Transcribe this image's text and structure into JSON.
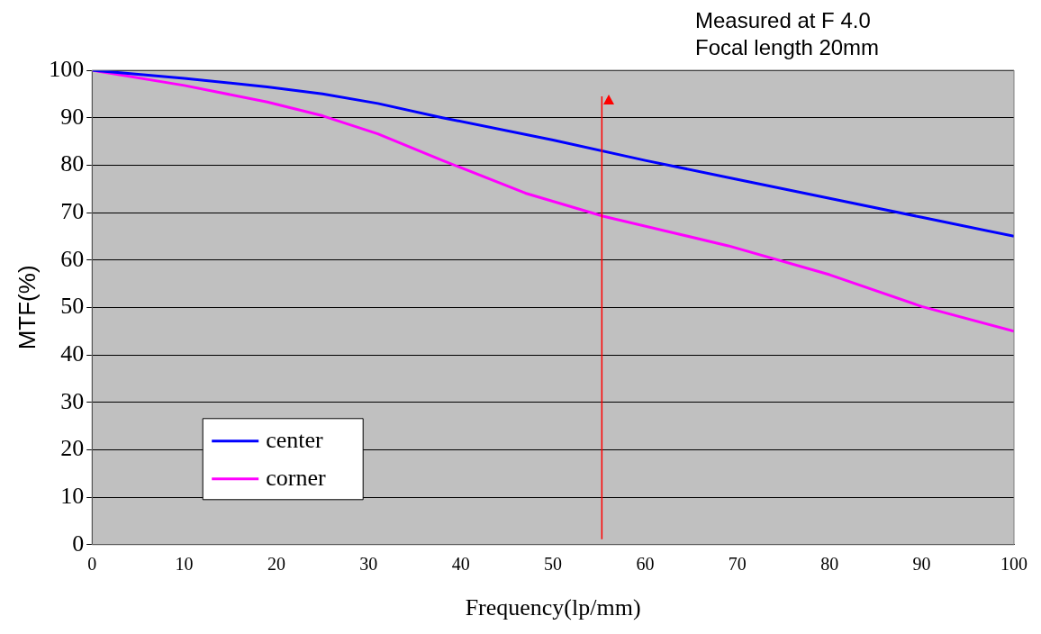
{
  "chart_data": {
    "type": "line",
    "xlabel": "Frequency(lp/mm)",
    "ylabel": "MTF(%)",
    "annotations": [
      "Measured at F 4.0",
      "Focal length 20mm"
    ],
    "series": [
      {
        "name": "center",
        "color": "#0000ff",
        "x": [
          0,
          10,
          19,
          25,
          31,
          38,
          50,
          60,
          70,
          80,
          90,
          100
        ],
        "values": [
          100,
          98.3,
          96.5,
          95,
          93,
          90,
          85.3,
          81,
          77,
          73,
          69,
          65
        ]
      },
      {
        "name": "corner",
        "color": "#ff00ff",
        "x": [
          0,
          10,
          19,
          25,
          31,
          38,
          47,
          55.5,
          69,
          80,
          90,
          100
        ],
        "values": [
          100,
          96.8,
          93.3,
          90.4,
          86.6,
          81,
          74.1,
          69.2,
          63,
          56.9,
          50.2,
          45
        ]
      }
    ],
    "xlim": [
      0,
      100
    ],
    "xticks": [
      0,
      10,
      20,
      30,
      40,
      50,
      60,
      70,
      80,
      90,
      100
    ],
    "ylim": [
      0,
      100
    ],
    "yticks": [
      0,
      10,
      20,
      30,
      40,
      50,
      60,
      70,
      80,
      90,
      100
    ],
    "ref_lines": [
      {
        "axis": "x",
        "value": 55.3,
        "color": "#ff0000"
      }
    ],
    "grid": "y",
    "legend": "bottom left",
    "marker": "none",
    "line_style": "solid"
  }
}
